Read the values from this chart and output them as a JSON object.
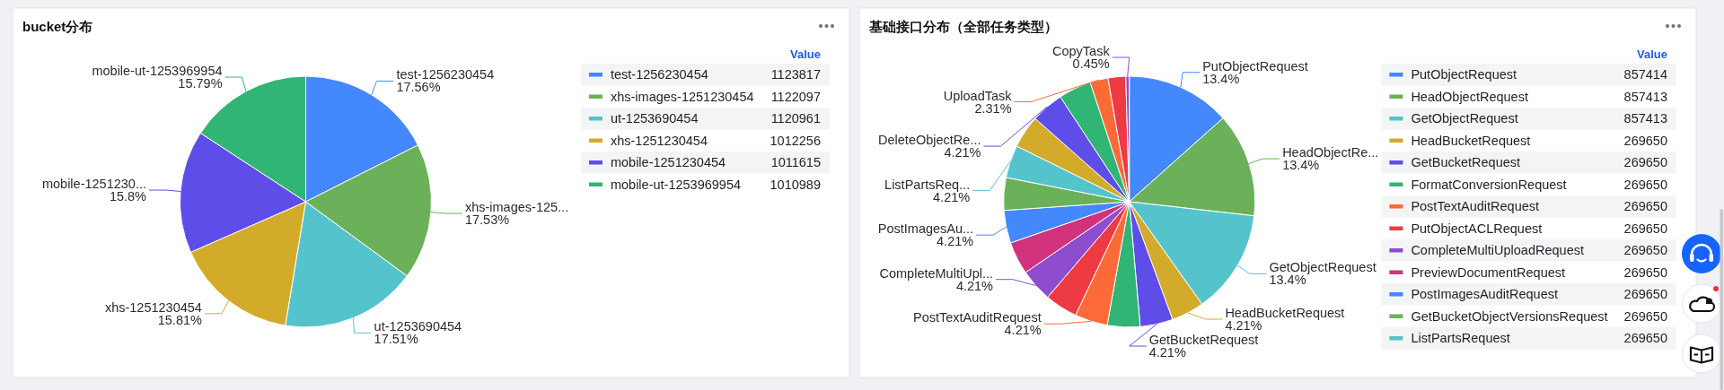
{
  "chart_data": [
    {
      "type": "pie",
      "title": "bucket分布",
      "categories": [
        "test-1256230454",
        "xhs-images-1251230454",
        "ut-1253690454",
        "xhs-1251230454",
        "mobile-1251230454",
        "mobile-ut-1253969954"
      ],
      "values": [
        1123817,
        1122097,
        1120961,
        1012256,
        1011615,
        1010989
      ],
      "colors": [
        "#4388fc",
        "#6ab15a",
        "#55c3cc",
        "#d3ab2a",
        "#5e4de8",
        "#30b574"
      ],
      "legend": "right",
      "legend_title": "Value",
      "data_labels": true,
      "annotations": [
        {
          "text": "17.56%",
          "x": "test-1256230454"
        },
        {
          "text": "xhs-images-125...",
          "x": "xhs-images-1251230454"
        },
        {
          "text": "17.53%",
          "x": "xhs-images-1251230454"
        },
        {
          "text": "17.51%",
          "x": "ut-1253690454"
        },
        {
          "text": "15.81%",
          "x": "xhs-1251230454"
        },
        {
          "text": "mobile-1251230...",
          "x": "mobile-1251230454"
        },
        {
          "text": "15.8%",
          "x": "mobile-1251230454"
        },
        {
          "text": "15.79%",
          "x": "mobile-ut-1253969954"
        }
      ]
    },
    {
      "type": "pie",
      "title": "基础接口分布（全部任务类型）",
      "categories": [
        "PutObjectRequest",
        "HeadObjectRequest",
        "GetObjectRequest",
        "HeadBucketRequest",
        "GetBucketRequest",
        "FormatConversionRequest",
        "PostTextAuditRequest",
        "PutObjectACLRequest",
        "CompleteMultiUploadRequest",
        "PreviewDocumentRequest",
        "PostImagesAuditRequest",
        "GetBucketObjectVersionsRequest",
        "ListPartsRequest",
        null,
        "DeleteObjectRe...",
        null,
        "UploadTask",
        null,
        "CopyTask"
      ],
      "values": [
        857414,
        857413,
        857413,
        269650,
        269650,
        269650,
        269650,
        269650,
        269650,
        269650,
        269650,
        269650,
        269650,
        270000,
        270000,
        270000,
        148000,
        145000,
        28800
      ],
      "colors": [
        "#4388fc",
        "#6ab15a",
        "#55c3cc",
        "#d3ab2a",
        "#5e4de8",
        "#30b574",
        "#fc6a37",
        "#ee3a42",
        "#8e4ccf",
        "#d2327b",
        "#4388fc",
        "#6ab15a",
        "#55c3cc",
        "#d3ab2a",
        "#5e4de8",
        "#30b574",
        "#fc6a37",
        "#ee3a42",
        "#8e4ccf"
      ],
      "legend": "right",
      "legend_title": "Value",
      "value_labels": [
        "857414",
        "857413",
        "857413",
        "269650",
        "269650",
        "269650",
        "269650",
        "269650",
        "269650",
        "269650",
        "269650",
        "269650",
        "269650",
        null,
        null,
        null,
        null,
        null,
        null
      ],
      "annotations": [
        {
          "text": "13.4%",
          "x": "PutObjectRequest"
        },
        {
          "text": "HeadObjectRe...",
          "x": "HeadObjectRequest"
        },
        {
          "text": "13.4%",
          "x": "HeadObjectRequest"
        },
        {
          "text": "13.4%",
          "x": "GetObjectRequest"
        },
        {
          "text": "4.21%",
          "x": "HeadBucketRequest"
        },
        {
          "text": "4.21%",
          "x": "GetBucketRequest"
        },
        {
          "text": "4.21%",
          "x": "PostTextAuditRequest"
        },
        {
          "text": "CompleteMultiUpl...",
          "x": "CompleteMultiUploadRequest"
        },
        {
          "text": "4.21%",
          "x": "CompleteMultiUploadRequest"
        },
        {
          "text": "PostImagesAu...",
          "x": "PostImagesAuditRequest"
        },
        {
          "text": "4.21%",
          "x": "PostImagesAuditRequest"
        },
        {
          "text": "ListPartsReq...",
          "x": "ListPartsRequest"
        },
        {
          "text": "4.21%",
          "x": "ListPartsRequest"
        },
        {
          "text": "4.21%",
          "x": "DeleteObjectRe..."
        },
        {
          "text": "2.31%",
          "x": "UploadTask"
        },
        {
          "text": "0.45%",
          "x": "CopyTask"
        }
      ]
    }
  ]
}
